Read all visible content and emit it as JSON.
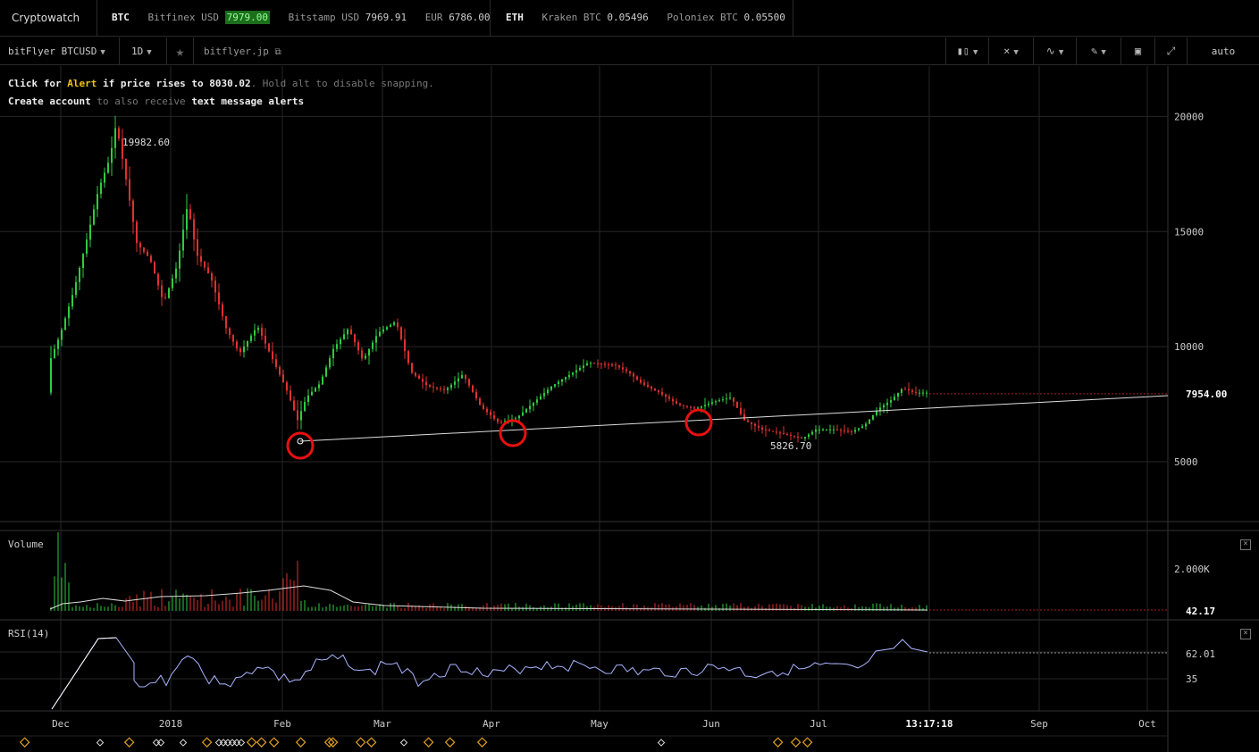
{
  "app": {
    "title": "Cryptowatch"
  },
  "tickers": [
    {
      "coin": "BTC",
      "items": [
        {
          "label": "Bitfinex USD",
          "value": "7979.00",
          "up": true
        },
        {
          "label": "Bitstamp USD",
          "value": "7969.91",
          "up": false
        },
        {
          "label": "EUR",
          "value": "6786.00",
          "up": false
        }
      ]
    },
    {
      "coin": "ETH",
      "items": [
        {
          "label": "Kraken BTC",
          "value": "0.05496",
          "up": false
        },
        {
          "label": "Poloniex BTC",
          "value": "0.05500",
          "up": false
        }
      ]
    }
  ],
  "toolbar": {
    "market": "bitFlyer BTCUSD",
    "period": "1D",
    "exchange_link": "bitflyer.jp",
    "scale": "auto",
    "icons": [
      "candles-icon",
      "crosshair-icon",
      "indicators-icon",
      "draw-icon",
      "screenshot-icon",
      "fullscreen-icon"
    ]
  },
  "alert": {
    "line1_a": "Click for ",
    "line1_link": "Alert",
    "line1_b": " if price rises to ",
    "line1_price": "8030.02",
    "line1_c": ". Hold alt to disable snapping.",
    "line2_a": "Create account",
    "line2_b": " to also receive ",
    "line2_c": "text message alerts"
  },
  "chart_data": {
    "type": "candlestick",
    "price_axis": {
      "ticks": [
        20000,
        15000,
        10000,
        5000
      ],
      "range": [
        2400,
        21800
      ]
    },
    "current_price": "7954.00",
    "high_label": "19982.60",
    "low_label": "5826.70",
    "time_axis": [
      "Dec",
      "2018",
      "Feb",
      "Mar",
      "Apr",
      "May",
      "Jun",
      "Jul",
      "13:17:18",
      "Sep",
      "Oct"
    ],
    "volume": {
      "label": "Volume",
      "tick": "2.000K",
      "current": "42.17"
    },
    "rsi": {
      "label": "RSI(14)",
      "ticks": [
        "62.01",
        "35"
      ]
    },
    "colors": {
      "up": "#2ecc40",
      "down": "#e03030",
      "grid": "#262626",
      "trendline": "#dddddd",
      "marker": "#e81010",
      "event": "#e0a020"
    }
  }
}
